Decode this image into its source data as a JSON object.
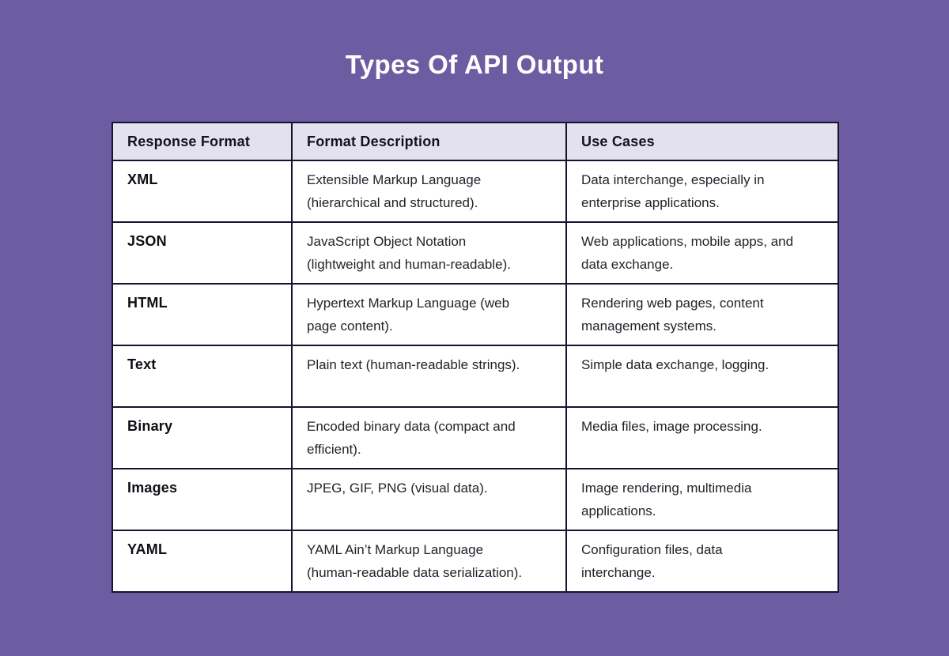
{
  "title": "Types Of API Output",
  "colors": {
    "background": "#6c5ca2",
    "header_bg": "#e4e1ee",
    "border": "#17132e",
    "title_text": "#ffffff"
  },
  "table": {
    "headers": [
      "Response Format",
      "Format Description",
      "Use Cases"
    ],
    "rows": [
      {
        "format": "XML",
        "description": "Extensible Markup Language\n(hierarchical and structured).",
        "use_cases": "Data interchange, especially in\nenterprise applications."
      },
      {
        "format": "JSON",
        "description": "JavaScript Object Notation\n(lightweight and human-readable).",
        "use_cases": "Web applications, mobile apps, and\ndata exchange."
      },
      {
        "format": "HTML",
        "description": "Hypertext Markup Language (web\npage content).",
        "use_cases": "Rendering web pages, content\nmanagement systems."
      },
      {
        "format": "Text",
        "description": "Plain text (human-readable strings).",
        "use_cases": "Simple data exchange, logging."
      },
      {
        "format": "Binary",
        "description": "Encoded binary data (compact and\nefficient).",
        "use_cases": "Media files, image processing."
      },
      {
        "format": "Images",
        "description": "JPEG, GIF, PNG (visual data).",
        "use_cases": "Image rendering, multimedia\napplications."
      },
      {
        "format": "YAML",
        "description": "YAML Ain’t Markup Language\n(human-readable data serialization).",
        "use_cases": "Configuration files, data\ninterchange."
      }
    ]
  }
}
